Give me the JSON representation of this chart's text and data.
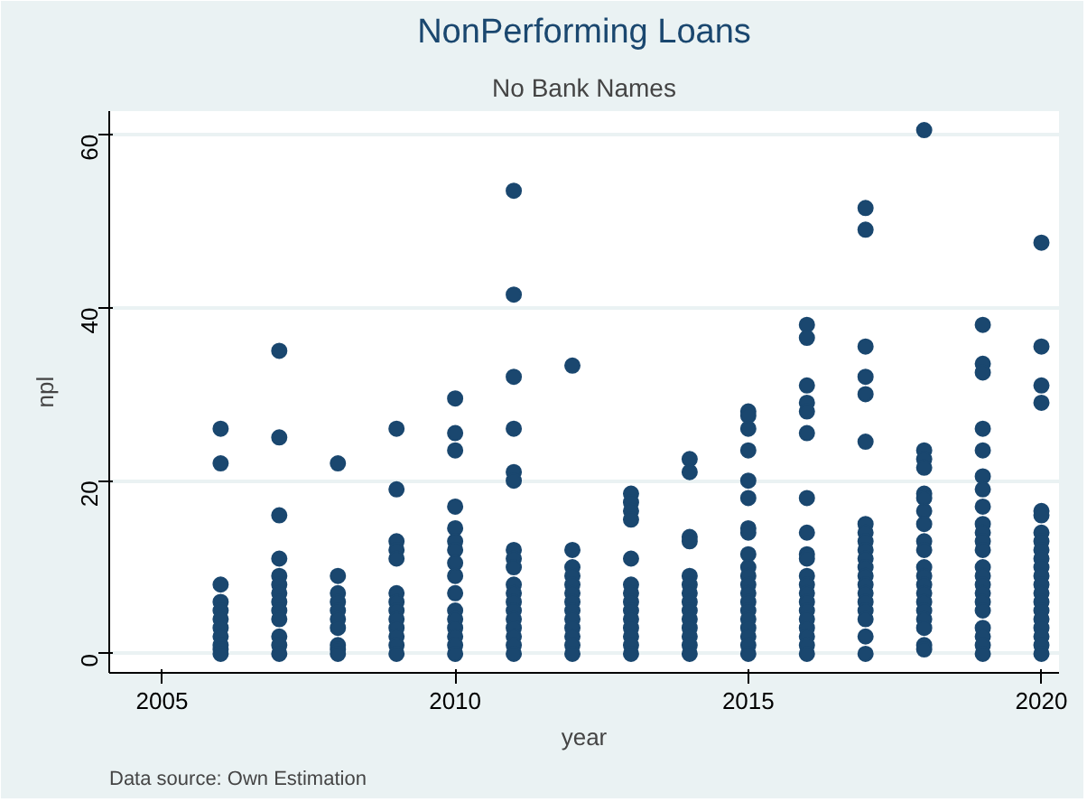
{
  "chart_data": {
    "type": "scatter",
    "title": "NonPerforming Loans",
    "subtitle": "No Bank Names",
    "xlabel": "year",
    "ylabel": "npl",
    "annotations": [
      "Data source:  Own Estimation"
    ],
    "xlim": [
      2004.1,
      2020.3
    ],
    "ylim": [
      -2.2,
      62.7
    ],
    "xticks": [
      2005,
      2010,
      2015,
      2020
    ],
    "yticks": [
      0,
      20,
      40,
      60
    ],
    "grid": "y",
    "marker": "circle",
    "series": [
      {
        "color": "#1a476f",
        "x": [
          2006,
          2006,
          2006,
          2006,
          2006,
          2006,
          2006,
          2006,
          2006,
          2006,
          2006,
          2007,
          2007,
          2007,
          2007,
          2007,
          2007,
          2007,
          2007,
          2007,
          2007,
          2007,
          2007,
          2007,
          2008,
          2008,
          2008,
          2008,
          2008,
          2008,
          2008,
          2008,
          2008,
          2008,
          2009,
          2009,
          2009,
          2009,
          2009,
          2009,
          2009,
          2009,
          2009,
          2009,
          2009,
          2009,
          2009,
          2010,
          2010,
          2010,
          2010,
          2010,
          2010,
          2010,
          2010,
          2010,
          2010,
          2010,
          2010,
          2010,
          2010,
          2010,
          2010,
          2011,
          2011,
          2011,
          2011,
          2011,
          2011,
          2011,
          2011,
          2011,
          2011,
          2011,
          2011,
          2011,
          2011,
          2011,
          2011,
          2011,
          2011,
          2012,
          2012,
          2012,
          2012,
          2012,
          2012,
          2012,
          2012,
          2012,
          2012,
          2012,
          2012,
          2012,
          2013,
          2013,
          2013,
          2013,
          2013,
          2013,
          2013,
          2013,
          2013,
          2013,
          2013,
          2013,
          2013,
          2013,
          2014,
          2014,
          2014,
          2014,
          2014,
          2014,
          2014,
          2014,
          2014,
          2014,
          2014,
          2014,
          2014,
          2014,
          2015,
          2015,
          2015,
          2015,
          2015,
          2015,
          2015,
          2015,
          2015,
          2015,
          2015,
          2015,
          2015,
          2015,
          2015,
          2015,
          2015,
          2015,
          2015,
          2015,
          2016,
          2016,
          2016,
          2016,
          2016,
          2016,
          2016,
          2016,
          2016,
          2016,
          2016,
          2016,
          2016,
          2016,
          2016,
          2016,
          2016,
          2016,
          2016,
          2016,
          2017,
          2017,
          2017,
          2017,
          2017,
          2017,
          2017,
          2017,
          2017,
          2017,
          2017,
          2017,
          2017,
          2017,
          2017,
          2017,
          2017,
          2017,
          2017,
          2017,
          2018,
          2018,
          2018,
          2018,
          2018,
          2018,
          2018,
          2018,
          2018,
          2018,
          2018,
          2018,
          2018,
          2018,
          2018,
          2018,
          2018,
          2018,
          2018,
          2018,
          2019,
          2019,
          2019,
          2019,
          2019,
          2019,
          2019,
          2019,
          2019,
          2019,
          2019,
          2019,
          2019,
          2019,
          2019,
          2019,
          2019,
          2019,
          2019,
          2019,
          2019,
          2019,
          2020,
          2020,
          2020,
          2020,
          2020,
          2020,
          2020,
          2020,
          2020,
          2020,
          2020,
          2020,
          2020,
          2020,
          2020,
          2020,
          2020,
          2020,
          2020,
          2020,
          2020
        ],
        "values": [
          26,
          22,
          8,
          6,
          5,
          4,
          3,
          2,
          1,
          0.5,
          0,
          35,
          25,
          16,
          11,
          9,
          8,
          7,
          6,
          5,
          4,
          2,
          1,
          0,
          22,
          9,
          7,
          6,
          5,
          4,
          3,
          1,
          0.5,
          0,
          26,
          19,
          13,
          12,
          11,
          7,
          6,
          5,
          4,
          3,
          2,
          1,
          0,
          29.5,
          25.5,
          23.5,
          17,
          14.5,
          13,
          12,
          10.5,
          9,
          7,
          5,
          4,
          3,
          2,
          1,
          0,
          53.5,
          41.5,
          32,
          26,
          21,
          20,
          12,
          11,
          10,
          8,
          7,
          6,
          5,
          4,
          3,
          2,
          1,
          0,
          33.3,
          12,
          10,
          9,
          8,
          7,
          6,
          5,
          4,
          3,
          2,
          1,
          0,
          18.5,
          17.5,
          16.5,
          15.5,
          11,
          8,
          7,
          6,
          5,
          4,
          3,
          2,
          1,
          0,
          22.5,
          21,
          13.5,
          13,
          9,
          8,
          7,
          6,
          5,
          4,
          3,
          2,
          1,
          0,
          28,
          27.5,
          26,
          23.5,
          20,
          18,
          14.5,
          14,
          11.5,
          10,
          9,
          8,
          7,
          6,
          5,
          4,
          3,
          2,
          1,
          0,
          38,
          36.5,
          31,
          29,
          28,
          25.5,
          18,
          14,
          11.5,
          11,
          9,
          8,
          7,
          6,
          5,
          4,
          3,
          2,
          1,
          0,
          51.5,
          49,
          35.5,
          32,
          30,
          24.5,
          15,
          14,
          13,
          12,
          11,
          10,
          9,
          8,
          7,
          6,
          5,
          4,
          2,
          0,
          60.5,
          23.5,
          22.5,
          21.5,
          18.5,
          18,
          16.5,
          15,
          13,
          12,
          10,
          9,
          8,
          7,
          6,
          5,
          4,
          3,
          1,
          0.5,
          38,
          33.5,
          32.5,
          26,
          23.5,
          20.5,
          19,
          17,
          15,
          14,
          13,
          12,
          10,
          9,
          8,
          7,
          6,
          5,
          3,
          2,
          1,
          0,
          47.5,
          35.5,
          31,
          29,
          16.5,
          16,
          14,
          13,
          12,
          11,
          10,
          9,
          8,
          7,
          6,
          5,
          4,
          3,
          2,
          1,
          0
        ]
      }
    ]
  }
}
